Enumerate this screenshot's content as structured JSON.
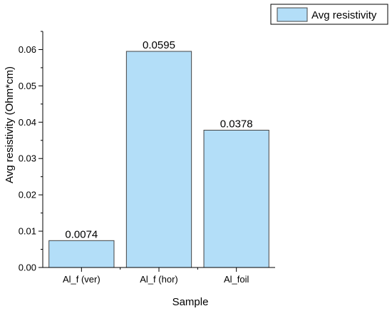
{
  "chart_data": {
    "type": "bar",
    "categories": [
      "Al_f (ver)",
      "Al_f (hor)",
      "Al_foil"
    ],
    "series": [
      {
        "name": "Avg resistivity",
        "values": [
          0.0074,
          0.0595,
          0.0378
        ]
      }
    ],
    "data_labels": [
      "0.0074",
      "0.0595",
      "0.0378"
    ],
    "xlabel": "Sample",
    "ylabel": "Avg resistivity (Ohm*cm)",
    "ylim": [
      0,
      0.065
    ],
    "yticks": [
      0.0,
      0.01,
      0.02,
      0.03,
      0.04,
      0.05,
      0.06
    ],
    "ytick_labels": [
      "0.00",
      "0.01",
      "0.02",
      "0.03",
      "0.04",
      "0.05",
      "0.06"
    ],
    "grid": false,
    "legend": {
      "position": "top-right",
      "entries": [
        "Avg resistivity"
      ]
    },
    "colors": {
      "bar_fill": "#B3DEF8",
      "bar_stroke": "#444444",
      "axis": "#000000"
    }
  }
}
